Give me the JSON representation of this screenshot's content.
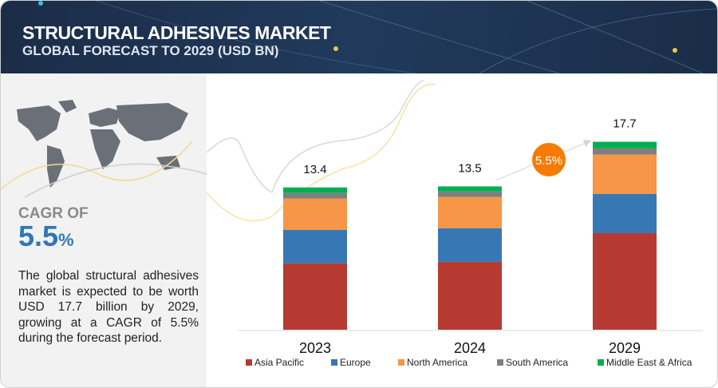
{
  "header": {
    "title": "STRUCTURAL ADHESIVES MARKET",
    "subtitle": "GLOBAL FORECAST TO 2029 (USD BN)"
  },
  "left_panel": {
    "cagr_label": "CAGR OF",
    "cagr_value": "5.5",
    "cagr_unit": "%",
    "description": "The global structural adhesives market is expected to be worth USD 17.7 billion by 2029, growing at a CAGR of 5.5% during the forecast period."
  },
  "chart_data": {
    "type": "bar",
    "stacked": true,
    "categories": [
      "2023",
      "2024",
      "2029"
    ],
    "totals": [
      "13.4",
      "13.5",
      "17.7"
    ],
    "series": [
      {
        "name": "Asia Pacific",
        "color": "#b63a32",
        "values": [
          6.25,
          6.4,
          9.1
        ]
      },
      {
        "name": "Europe",
        "color": "#3777b4",
        "values": [
          3.16,
          3.16,
          3.7
        ]
      },
      {
        "name": "North America",
        "color": "#f79646",
        "values": [
          2.94,
          2.94,
          3.7
        ]
      },
      {
        "name": "South America",
        "color": "#7f7f7f",
        "values": [
          0.53,
          0.53,
          0.6
        ]
      },
      {
        "name": "Middle East & Africa",
        "color": "#00b050",
        "values": [
          0.52,
          0.47,
          0.6
        ]
      }
    ],
    "cagr_badge": "5.5%",
    "badge_color": "#f57c00",
    "legend": "bottom",
    "grid": false
  }
}
